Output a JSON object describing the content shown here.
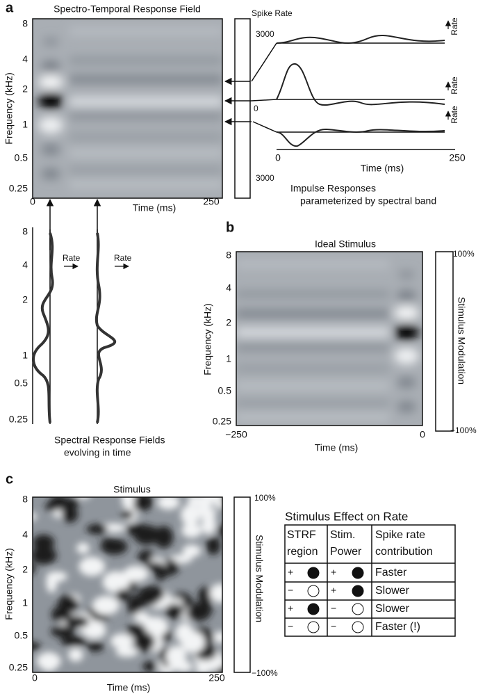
{
  "panel_a": {
    "letter": "a",
    "title": "Spectro-Temporal Response Field",
    "y_label": "Frequency (kHz)",
    "y_ticks": [
      "8",
      "4",
      "2",
      "1",
      "0.5",
      "0.25"
    ],
    "x_label": "Time (ms)",
    "x_ticks": [
      "0",
      "250"
    ],
    "colorbar_title": "Spike Rate",
    "colorbar_ticks": [
      "3000",
      "0",
      "3000"
    ],
    "impulse_rate_labels": [
      "Rate",
      "Rate",
      "Rate"
    ],
    "impulse_x_label": "Time (ms)",
    "impulse_x_ticks": [
      "0",
      "250"
    ],
    "impulse_caption": [
      "Impulse Responses",
      "parameterized by spectral band"
    ],
    "spectral_y_ticks": [
      "8",
      "4",
      "2",
      "1",
      "0.5",
      "0.25"
    ],
    "spectral_rate_labels": [
      "Rate",
      "Rate"
    ],
    "spectral_caption": [
      "Spectral Response Fields",
      "evolving in time"
    ]
  },
  "panel_b": {
    "letter": "b",
    "title": "Ideal Stimulus",
    "y_label": "Frequency (kHz)",
    "y_ticks": [
      "8",
      "4",
      "2",
      "1",
      "0.5",
      "0.25"
    ],
    "x_label": "Time (ms)",
    "x_ticks": [
      "−250",
      "0"
    ],
    "colorbar_label": "Stimulus Modulation",
    "colorbar_ticks": [
      "100%",
      "−100%"
    ]
  },
  "panel_c": {
    "letter": "c",
    "title": "Stimulus",
    "y_label": "Frequency (kHz)",
    "y_ticks": [
      "8",
      "4",
      "2",
      "1",
      "0.5",
      "0.25"
    ],
    "x_label": "Time (ms)",
    "x_ticks": [
      "0",
      "250"
    ],
    "colorbar_label": "Stimulus Modulation",
    "colorbar_ticks": [
      "100%",
      "−100%"
    ],
    "table": {
      "title": "Stimulus Effect on Rate",
      "header": [
        [
          "STRF",
          "region"
        ],
        [
          "Stim.",
          "Power"
        ],
        [
          "Spike rate",
          "contribution"
        ]
      ],
      "rows": [
        [
          "+",
          "+",
          "Faster"
        ],
        [
          "−",
          "+",
          "Slower"
        ],
        [
          "+",
          "−",
          "Slower"
        ],
        [
          "−",
          "−",
          "Faster (!)"
        ]
      ]
    }
  }
}
